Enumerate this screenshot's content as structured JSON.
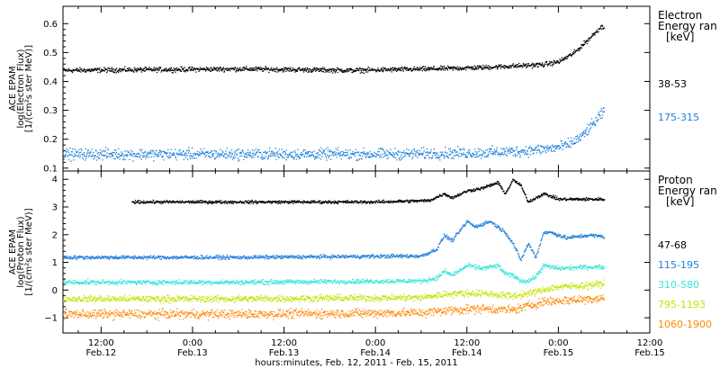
{
  "chart_data": {
    "type": "scatter",
    "xlabel": "hours:minutes, Feb. 12, 2011 - Feb. 15, 2011",
    "x_ticks": [
      {
        "t": 12,
        "time": "12:00",
        "date": "Feb.12"
      },
      {
        "t": 24,
        "time": "0:00",
        "date": "Feb.13"
      },
      {
        "t": 36,
        "time": "12:00",
        "date": "Feb.13"
      },
      {
        "t": 48,
        "time": "0:00",
        "date": "Feb.14"
      },
      {
        "t": 60,
        "time": "12:00",
        "date": "Feb.14"
      },
      {
        "t": 72,
        "time": "0:00",
        "date": "Feb.15"
      },
      {
        "t": 84,
        "time": "12:00",
        "date": "Feb.15"
      }
    ],
    "xlim": [
      7,
      84
    ],
    "panels": [
      {
        "id": "electron",
        "ylabel": [
          "ACE EPAM",
          "log(Electron Flux)",
          "[1/(cm²s ster MeV)]"
        ],
        "ylim": [
          0.09,
          0.66
        ],
        "yticks": [
          0.1,
          0.2,
          0.3,
          0.4,
          0.5,
          0.6
        ],
        "ytick_labels": [
          "0.1",
          "0.2",
          "0.3",
          "0.4",
          "0.5",
          "0.6"
        ],
        "legend_title": [
          "Electron",
          "Energy ran",
          "[keV]"
        ],
        "series": [
          {
            "name": "38-53",
            "color": "#000000",
            "noise": 0.006,
            "keyframes": [
              [
                7,
                0.44
              ],
              [
                30,
                0.445
              ],
              [
                45,
                0.44
              ],
              [
                55,
                0.445
              ],
              [
                62,
                0.45
              ],
              [
                66,
                0.455
              ],
              [
                70,
                0.46
              ],
              [
                72,
                0.47
              ],
              [
                74,
                0.5
              ],
              [
                76,
                0.55
              ],
              [
                77.5,
                0.59
              ],
              [
                78,
                0.59
              ]
            ]
          },
          {
            "name": "175-315",
            "color": "#1f7fd9",
            "noise": 0.014,
            "keyframes": [
              [
                7,
                0.15
              ],
              [
                30,
                0.15
              ],
              [
                50,
                0.15
              ],
              [
                62,
                0.155
              ],
              [
                67,
                0.16
              ],
              [
                71,
                0.17
              ],
              [
                73,
                0.18
              ],
              [
                75,
                0.21
              ],
              [
                77,
                0.27
              ],
              [
                78,
                0.3
              ]
            ]
          }
        ]
      },
      {
        "id": "proton",
        "ylabel": [
          "ACE EPAM",
          "log(Proton Flux)",
          "[1/(cm²s ster MeV)]"
        ],
        "ylim": [
          -1.55,
          4.3
        ],
        "yticks": [
          -1,
          0,
          1,
          2,
          3,
          4
        ],
        "ytick_labels": [
          "−1",
          "0",
          "1",
          "2",
          "3",
          "4"
        ],
        "legend_title": [
          "Proton",
          "Energy ran",
          "[keV]"
        ],
        "series": [
          {
            "name": "47-68",
            "color": "#000000",
            "noise": 0.04,
            "keyframes": [
              [
                16,
                3.2
              ],
              [
                30,
                3.2
              ],
              [
                48,
                3.2
              ],
              [
                55,
                3.25
              ],
              [
                57,
                3.5
              ],
              [
                58,
                3.35
              ],
              [
                60,
                3.6
              ],
              [
                62,
                3.7
              ],
              [
                64,
                3.9
              ],
              [
                65,
                3.5
              ],
              [
                66,
                4.0
              ],
              [
                67,
                3.8
              ],
              [
                68,
                3.2
              ],
              [
                70,
                3.5
              ],
              [
                72,
                3.3
              ],
              [
                76,
                3.3
              ],
              [
                78,
                3.3
              ]
            ]
          },
          {
            "name": "115-195",
            "color": "#1f7fd9",
            "noise": 0.05,
            "keyframes": [
              [
                7,
                1.2
              ],
              [
                30,
                1.2
              ],
              [
                54,
                1.25
              ],
              [
                56,
                1.5
              ],
              [
                57,
                2.0
              ],
              [
                58,
                1.8
              ],
              [
                60,
                2.5
              ],
              [
                61,
                2.3
              ],
              [
                63,
                2.5
              ],
              [
                65,
                2.1
              ],
              [
                66,
                1.7
              ],
              [
                67,
                1.1
              ],
              [
                68,
                1.7
              ],
              [
                69,
                1.2
              ],
              [
                70,
                2.1
              ],
              [
                71,
                2.1
              ],
              [
                73,
                1.9
              ],
              [
                76,
                2.0
              ],
              [
                78,
                1.95
              ]
            ]
          },
          {
            "name": "310-580",
            "color": "#33e6d6",
            "noise": 0.06,
            "keyframes": [
              [
                7,
                0.3
              ],
              [
                30,
                0.3
              ],
              [
                54,
                0.35
              ],
              [
                56,
                0.45
              ],
              [
                57,
                0.7
              ],
              [
                58,
                0.55
              ],
              [
                60,
                0.9
              ],
              [
                62,
                0.8
              ],
              [
                64,
                0.9
              ],
              [
                65,
                0.6
              ],
              [
                66,
                0.55
              ],
              [
                67,
                0.35
              ],
              [
                68,
                0.35
              ],
              [
                69,
                0.5
              ],
              [
                70,
                0.9
              ],
              [
                72,
                0.8
              ],
              [
                76,
                0.85
              ],
              [
                78,
                0.85
              ]
            ]
          },
          {
            "name": "795-1193",
            "color": "#c8e000",
            "noise": 0.09,
            "keyframes": [
              [
                7,
                -0.3
              ],
              [
                30,
                -0.3
              ],
              [
                54,
                -0.25
              ],
              [
                58,
                -0.1
              ],
              [
                62,
                -0.1
              ],
              [
                66,
                -0.2
              ],
              [
                69,
                -0.05
              ],
              [
                71,
                0.1
              ],
              [
                73,
                0.15
              ],
              [
                76,
                0.2
              ],
              [
                78,
                0.25
              ]
            ]
          },
          {
            "name": "1060-1900",
            "color": "#ff8800",
            "noise": 0.12,
            "keyframes": [
              [
                7,
                -0.85
              ],
              [
                30,
                -0.85
              ],
              [
                54,
                -0.8
              ],
              [
                58,
                -0.7
              ],
              [
                62,
                -0.65
              ],
              [
                66,
                -0.7
              ],
              [
                68,
                -0.55
              ],
              [
                70,
                -0.4
              ],
              [
                73,
                -0.35
              ],
              [
                76,
                -0.3
              ],
              [
                78,
                -0.25
              ]
            ]
          }
        ]
      }
    ]
  }
}
